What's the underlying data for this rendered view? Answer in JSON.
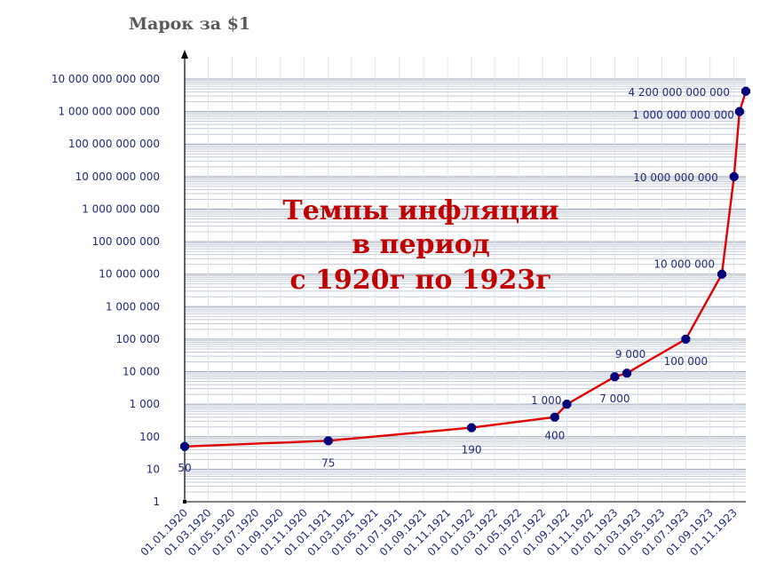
{
  "chart_data": {
    "type": "line",
    "title_lines": [
      "Темпы инфляции",
      "в период",
      "с 1920г по 1923г"
    ],
    "ylabel": "Марок за $1",
    "xlabel": "",
    "y_scale": "log",
    "ylim": [
      1,
      10000000000000
    ],
    "y_tick_labels": [
      "1",
      "10",
      "100",
      "1 000",
      "10 000",
      "100 000",
      "1 000 000",
      "10 000 000",
      "100 000 000",
      "1 000 000 000",
      "10 000 000 000",
      "100 000 000 000",
      "1 000 000 000 000",
      "10 000 000 000 000"
    ],
    "x_tick_labels": [
      "01.01.1920",
      "01.03.1920",
      "01.05.1920",
      "01.07.1920",
      "01.09.1920",
      "01.11.1920",
      "01.01.1921",
      "01.03.1921",
      "01.05.1921",
      "01.07.1921",
      "01.09.1921",
      "01.11.1921",
      "01.01.1922",
      "01.03.1922",
      "01.05.1922",
      "01.07.1922",
      "01.09.1922",
      "01.11.1922",
      "01.01.1923",
      "01.03.1923",
      "01.05.1923",
      "01.07.1923",
      "01.09.1923",
      "01.11.1923"
    ],
    "grid": true,
    "line_color": "#e00000",
    "marker_color": "#00007a",
    "series": [
      {
        "points": [
          {
            "x": "01.01.1920",
            "y": 50,
            "label": "50"
          },
          {
            "x": "01.01.1921",
            "y": 75,
            "label": "75"
          },
          {
            "x": "01.01.1922",
            "y": 190,
            "label": "190"
          },
          {
            "x": "01.08.1922",
            "y": 400,
            "label": "400"
          },
          {
            "x": "01.09.1922",
            "y": 1000,
            "label": "1 000"
          },
          {
            "x": "01.01.1923",
            "y": 7000,
            "label": "7 000"
          },
          {
            "x": "01.02.1923",
            "y": 9000,
            "label": "9 000"
          },
          {
            "x": "01.07.1923",
            "y": 100000,
            "label": "100 000"
          },
          {
            "x": "01.10.1923",
            "y": 10000000,
            "label": "10 000 000"
          },
          {
            "x": "01.11.1923",
            "y": 10000000000,
            "label": "10 000 000 000"
          },
          {
            "x": "15.11.1923",
            "y": 1000000000000,
            "label": "1 000 000 000 000"
          },
          {
            "x": "01.12.1923",
            "y": 4200000000000,
            "label": "4 200 000 000 000"
          }
        ]
      }
    ]
  }
}
